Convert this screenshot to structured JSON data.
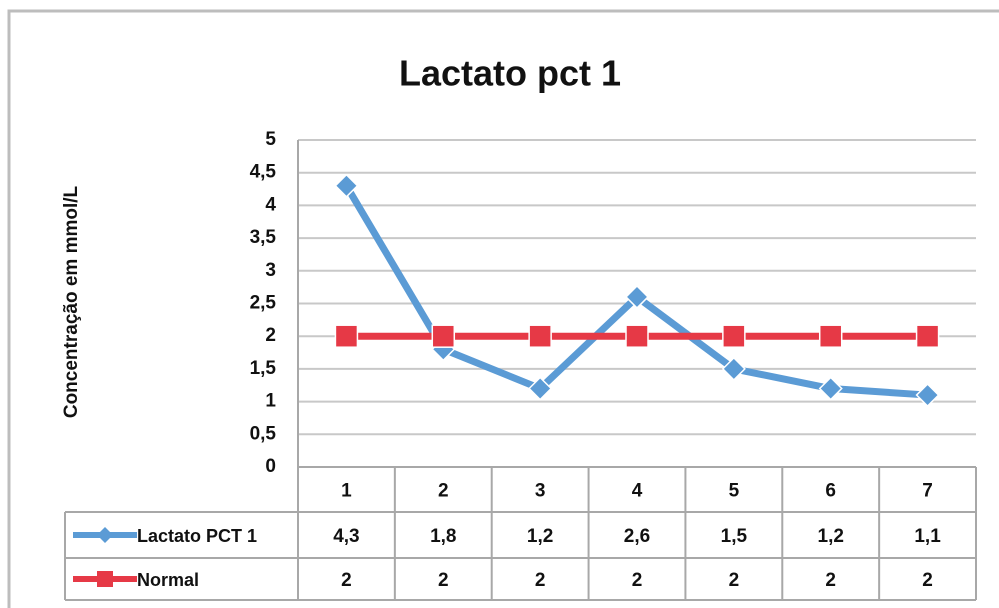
{
  "chart_data": {
    "type": "line",
    "title": "Lactato pct 1",
    "y_label": "Concentração em mmol/L",
    "categories": [
      "1",
      "2",
      "3",
      "4",
      "5",
      "6",
      "7"
    ],
    "series": [
      {
        "name": "Lactato PCT 1",
        "color": "#5b9bd5",
        "marker": "diamond",
        "values": [
          4.3,
          1.8,
          1.2,
          2.6,
          1.5,
          1.2,
          1.1
        ],
        "value_labels": [
          "4,3",
          "1,8",
          "1,2",
          "2,6",
          "1,5",
          "1,2",
          "1,1"
        ]
      },
      {
        "name": "Normal",
        "color": "#e63946",
        "marker": "square",
        "values": [
          2,
          2,
          2,
          2,
          2,
          2,
          2
        ]
      }
    ],
    "ylim": [
      0,
      5
    ],
    "yticks": [
      0,
      {
        "value": 0.5,
        "label": "0,5"
      },
      1,
      {
        "value": 1.5,
        "label": "1,5"
      },
      2,
      {
        "value": 2.5,
        "label": "2,5"
      },
      3,
      {
        "value": 3.5,
        "label": "3,5"
      },
      4,
      {
        "value": 4.5,
        "label": "4,5"
      },
      5
    ],
    "grid": true,
    "data_table": true
  }
}
